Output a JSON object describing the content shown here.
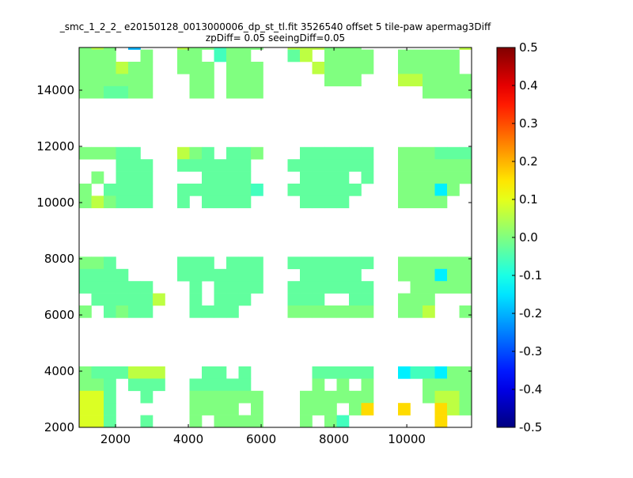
{
  "chart_data": {
    "type": "heatmap",
    "title_line1": "_smc_1_2_2_ e20150128_0013000006_dp_st_tl.fit 3526540 offset 5 tile-paw apermag3Diff",
    "title_line2": "zpDiff= 0.05 seeingDiff=0.05",
    "xlim": [
      1000,
      11780
    ],
    "ylim": [
      2000,
      15520
    ],
    "x_ticks": [
      "2000",
      "4000",
      "6000",
      "8000",
      "10000"
    ],
    "x_tick_values": [
      2000,
      4000,
      6000,
      8000,
      10000
    ],
    "y_ticks": [
      "2000",
      "4000",
      "6000",
      "8000",
      "10000",
      "12000",
      "14000"
    ],
    "y_tick_values": [
      2000,
      4000,
      6000,
      8000,
      10000,
      12000,
      14000
    ],
    "colorbar": {
      "min": -0.5,
      "max": 0.5,
      "colormap": "jet",
      "ticks": [
        "-0.5",
        "-0.4",
        "-0.3",
        "-0.2",
        "-0.1",
        "0.0",
        "0.1",
        "0.2",
        "0.3",
        "0.4",
        "0.5"
      ],
      "tick_values": [
        -0.5,
        -0.4,
        -0.3,
        -0.2,
        -0.1,
        0.0,
        0.1,
        0.2,
        0.3,
        0.4,
        0.5
      ]
    },
    "grid_columns": 32,
    "value_codes": {
      "g": 0.0,
      "G": -0.03,
      "t": -0.06,
      "y": 0.06,
      "l": 0.09,
      "Y": 0.16,
      "c": -0.14,
      "b": -0.2
    },
    "rows_top_to_bottom": [
      "gyg.b...yggtggg..yyyggg........y",
      "ggg..g..gg.tgg...Gy.gggg..ggggg.",
      "gggygg..ggg.ggg....ygggg..ggggg.",
      "gggggg...gg.ggg.....ggg...yygggg",
      "ggGGgg...gg.ggg.............gggg",
      "................................",
      "................................",
      "................................",
      "................................",
      "gggGG...ygG.GGg...GGGGGG..gggGGG",
      "...GGG..GGGGGG...GGGGGGG..gggggg",
      ".g.GGG....GGGG....GGGG.G..gggggg",
      "g.GGGG..GGGGGGt..GGGGGG...gggcg.",
      "gygGGG..G.GGGG....GGGG....gggg..",
      "................................",
      "................................",
      "................................",
      "................................",
      "ggG.....GGG.GGG..GGGGGGG..gggggg",
      "GGGG....GGGGGGG...GGGGG...gggcgg",
      "GGGGGG...G.GGGG..GGGGGGG...ggggg",
      ".GGGGGy..G.GGG...GGG..GG..ggg...",
      "g.GgGG...GGGG....ggggggg..ggy..g",
      "................................",
      "................................",
      "................................",
      "................................",
      "gGGGyyy...GG.G.....GGGGG..cttcgg",
      "ggG.GGG..GGGGG.....g.g.g....gggg",
      "llG..G...gggggg...gggggg....gyyg",
      "llG......gggg.g...ggg.gY..Y..Yyg",
      "llG..G...g.gggg...g.gt.......Y.."
    ]
  }
}
